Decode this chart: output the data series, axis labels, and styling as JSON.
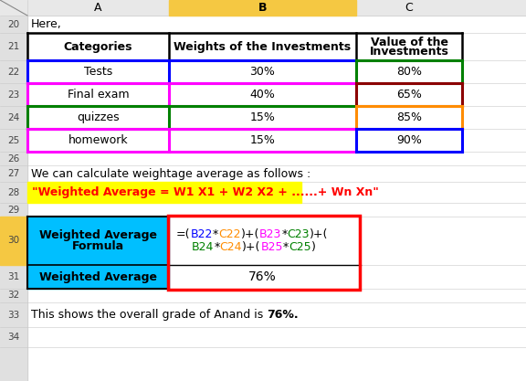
{
  "bg_color": "#ffffff",
  "header_col_a": "A",
  "header_col_b": "B",
  "header_col_c": "C",
  "header_bg_b": "#f5c842",
  "header_bg_ac": "#e8e8e8",
  "row_num_bg": "#e0e0e0",
  "table_header_categories": "Categories",
  "table_header_weights": "Weights of the Investments",
  "table_header_value_line1": "Value of the",
  "table_header_value_line2": "Investments",
  "data_rows": [
    [
      "Tests",
      "30%",
      "80%"
    ],
    [
      "Final exam",
      "40%",
      "65%"
    ],
    [
      "quizzes",
      "15%",
      "85%"
    ],
    [
      "homework",
      "15%",
      "90%"
    ]
  ],
  "formula_label_line1": "Weighted Average",
  "formula_label_line2": "Formula",
  "formula_cell_bg": "#00bfff",
  "formula_row_num_bg": "#f5c842",
  "formula_text_line1": [
    {
      "text": "=(",
      "color": "#000000"
    },
    {
      "text": "B22",
      "color": "#0000ff"
    },
    {
      "text": "*",
      "color": "#000000"
    },
    {
      "text": "C22",
      "color": "#ff8c00"
    },
    {
      "text": ")+(",
      "color": "#000000"
    },
    {
      "text": "B23",
      "color": "#ff00ff"
    },
    {
      "text": "*",
      "color": "#000000"
    },
    {
      "text": "C23",
      "color": "#008000"
    },
    {
      "text": ")+(",
      "color": "#000000"
    }
  ],
  "formula_text_line2": [
    {
      "text": "B24",
      "color": "#008000"
    },
    {
      "text": "*",
      "color": "#000000"
    },
    {
      "text": "C24",
      "color": "#ff8c00"
    },
    {
      "text": ")+(",
      "color": "#000000"
    },
    {
      "text": "B25",
      "color": "#ff00ff"
    },
    {
      "text": "*",
      "color": "#000000"
    },
    {
      "text": "C25",
      "color": "#008000"
    },
    {
      "text": ")",
      "color": "#000000"
    }
  ],
  "weighted_avg_label": "Weighted Average",
  "weighted_avg_value": "76%",
  "row27_text": "We can calculate weightage average as follows :",
  "row28_text": "\"Weighted Average = W1 X1 + W2 X2 + ......+ Wn Xn\"",
  "row28_text_color": "#ff0000",
  "row28_bg": "#ffff00",
  "row20_text": "Here,",
  "row33_text_plain": "This shows the overall grade of Anand is ",
  "row33_text_bold": "76%.",
  "row_border_colors": {
    "22": {
      "top": "#0000ff",
      "bot": "#0000ff",
      "left": "#0000ff",
      "mid": "#0000ff",
      "right_top": "#008000",
      "right_bot": "#008000",
      "right_left": "#008000",
      "right_right": "#008000"
    },
    "23": {
      "top": "#ff00ff",
      "bot": "#ff00ff",
      "left": "#ff00ff",
      "mid": "#ff00ff",
      "right_top": "#8b0000",
      "right_bot": "#8b0000",
      "right_left": "#8b0000",
      "right_right": "#8b0000"
    },
    "24": {
      "top": "#008000",
      "bot": "#008000",
      "left": "#008000",
      "mid": "#008000",
      "right_top": "#ff8c00",
      "right_bot": "#ff8c00",
      "right_left": "#ff8c00",
      "right_right": "#ff8c00"
    },
    "25": {
      "top": "#ff00ff",
      "bot": "#ff00ff",
      "left": "#ff00ff",
      "mid": "#ff00ff",
      "right_top": "#0000ff",
      "right_bot": "#0000ff",
      "right_left": "#0000ff",
      "right_right": "#0000ff"
    }
  }
}
